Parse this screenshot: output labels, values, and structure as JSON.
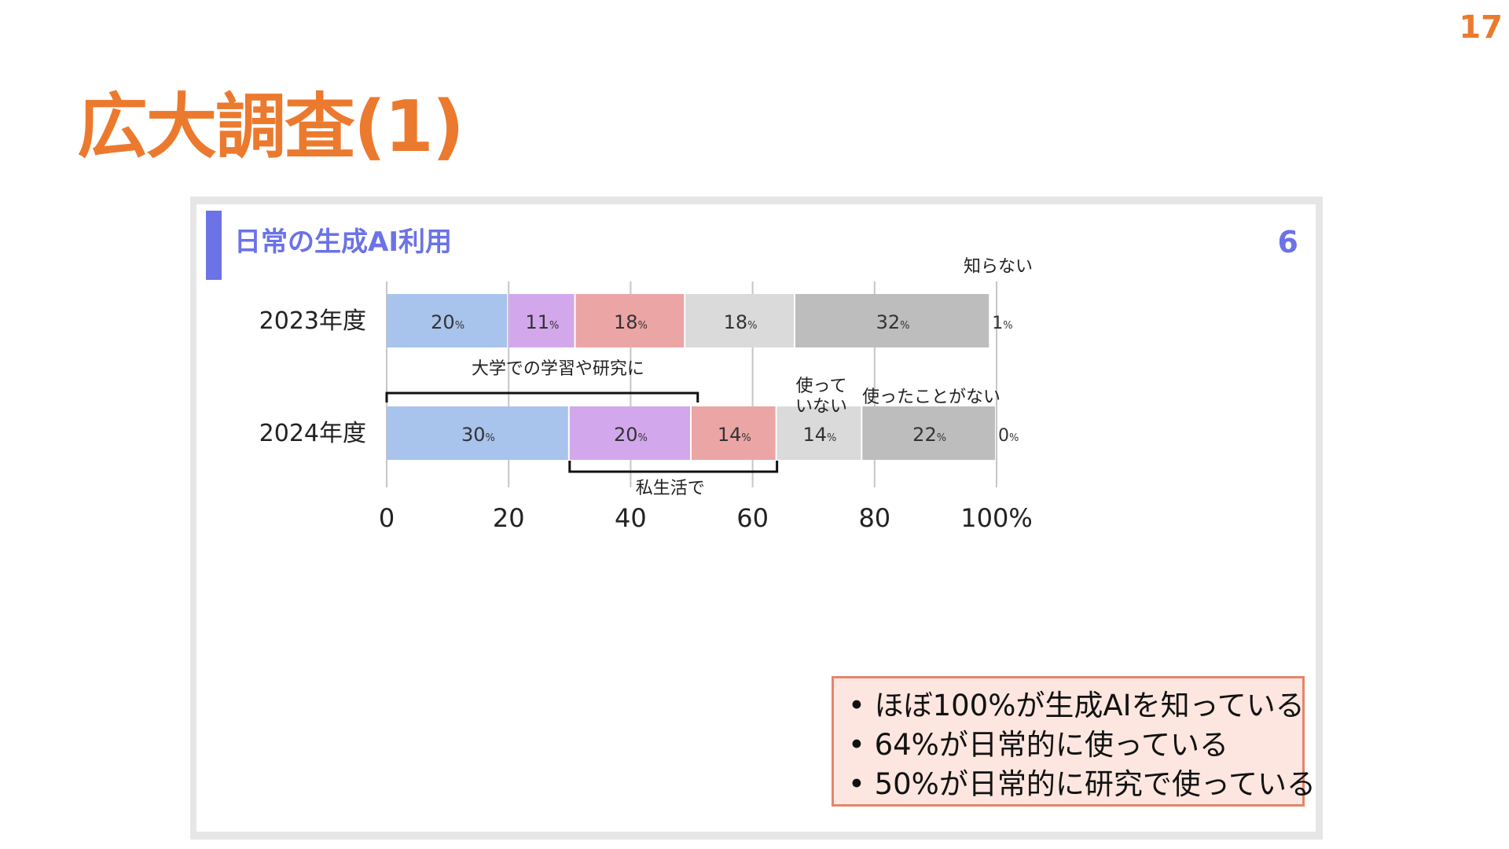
{
  "page": {
    "number": "17",
    "title": "広大調査(1)"
  },
  "card": {
    "title": "日常の生成AI利用",
    "number": "6",
    "accent_color": "#6B73E6"
  },
  "notes": [
    "ほぼ100%が生成AIを知っている",
    "64%が日常的に使っている",
    "50%が日常的に研究で使っている"
  ],
  "chart_data": {
    "type": "bar",
    "orientation": "horizontal",
    "stacked": true,
    "categories": [
      "2023年度",
      "2024年度"
    ],
    "series": [
      {
        "name": "大学での学習や研究に",
        "color": "#A8C3EC",
        "values": [
          20,
          30
        ]
      },
      {
        "name": "",
        "color": "#D3A7EC",
        "values": [
          11,
          20
        ]
      },
      {
        "name": "",
        "color": "#EBA5A5",
        "values": [
          18,
          14
        ]
      },
      {
        "name": "使っていない",
        "color": "#DADADA",
        "values": [
          18,
          14
        ]
      },
      {
        "name": "使ったことがない",
        "color": "#BDBDBD",
        "values": [
          32,
          22
        ]
      },
      {
        "name": "知らない",
        "color": "#FFFFFF",
        "values": [
          1,
          0
        ]
      }
    ],
    "value_suffix": "%",
    "xlim": [
      0,
      100
    ],
    "xticks": [
      0,
      20,
      40,
      60,
      80,
      100
    ],
    "xtick_labels": [
      "0",
      "20",
      "40",
      "60",
      "80",
      "100%"
    ],
    "grid": true,
    "annotations": [
      {
        "text": "大学での学習や研究に",
        "type": "bracket-above",
        "row": 1,
        "from": 0,
        "to": 51
      },
      {
        "text": "私生活で",
        "type": "bracket-below",
        "row": 1,
        "from": 30,
        "to": 64
      }
    ]
  }
}
